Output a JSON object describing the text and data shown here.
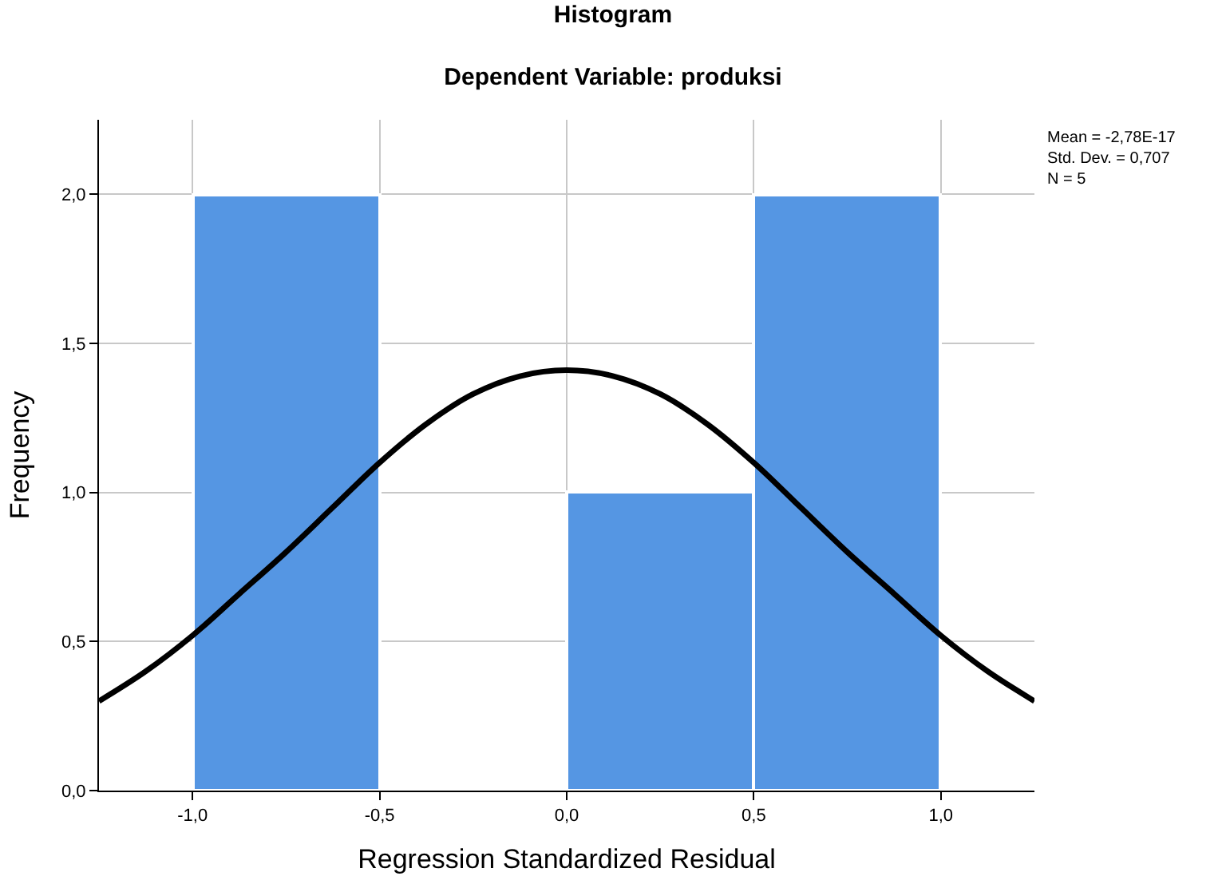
{
  "chart_data": {
    "type": "histogram",
    "title": "Histogram",
    "subtitle": "Dependent Variable: produksi",
    "xlabel": "Regression Standardized Residual",
    "ylabel": "Frequency",
    "bins": [
      -1.0,
      -0.5,
      0.0,
      0.5,
      1.0
    ],
    "values": [
      2,
      0,
      1,
      2
    ],
    "color": "#5596e3",
    "series": [
      {
        "type": "line",
        "color": "#000000",
        "x": [
          -1.25,
          -1.125,
          -1.0,
          -0.875,
          -0.75,
          -0.625,
          -0.5,
          -0.375,
          -0.25,
          -0.125,
          0.0,
          0.125,
          0.25,
          0.375,
          0.5,
          0.625,
          0.75,
          0.875,
          1.0,
          1.125,
          1.25
        ],
        "values": [
          0.3,
          0.4,
          0.52,
          0.66,
          0.8,
          0.95,
          1.1,
          1.23,
          1.33,
          1.39,
          1.41,
          1.39,
          1.33,
          1.23,
          1.1,
          0.95,
          0.8,
          0.66,
          0.52,
          0.4,
          0.3
        ]
      }
    ],
    "xlim": [
      -1.25,
      1.25
    ],
    "ylim": [
      0,
      2.25
    ],
    "xticks": [
      {
        "value": -1.0,
        "label": "-1,0"
      },
      {
        "value": -0.5,
        "label": "-0,5"
      },
      {
        "value": 0.0,
        "label": "0,0"
      },
      {
        "value": 0.5,
        "label": "0,5"
      },
      {
        "value": 1.0,
        "label": "1,0"
      }
    ],
    "yticks": [
      {
        "value": 0.0,
        "label": "0,0"
      },
      {
        "value": 0.5,
        "label": "0,5"
      },
      {
        "value": 1.0,
        "label": "1,0"
      },
      {
        "value": 1.5,
        "label": "1,5"
      },
      {
        "value": 2.0,
        "label": "2,0"
      }
    ],
    "grid": true,
    "annotations": [
      "Mean = -2,78E-17\nStd. Dev. = 0,707\nN = 5"
    ]
  }
}
